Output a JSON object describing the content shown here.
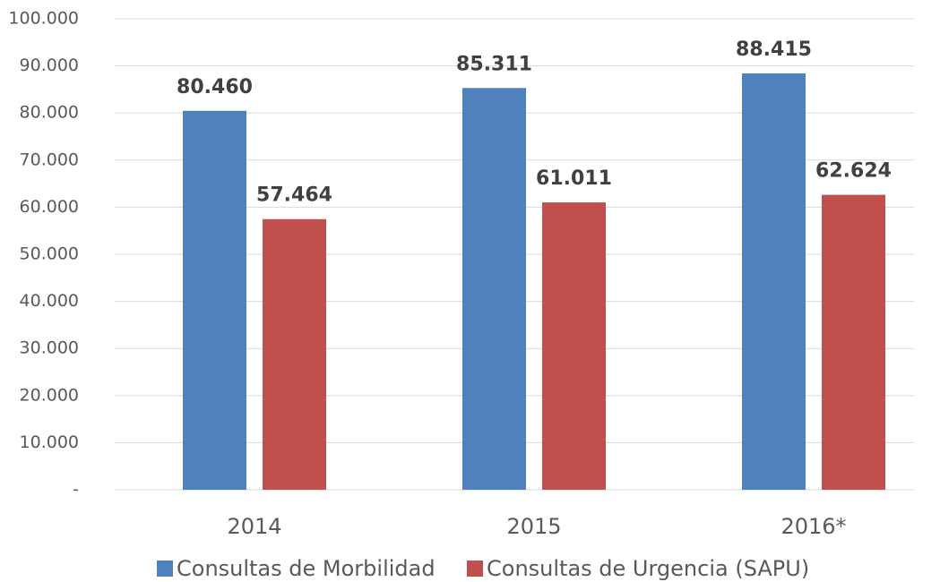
{
  "chart_data": {
    "type": "bar",
    "categories": [
      "2014",
      "2015",
      "2016*"
    ],
    "series": [
      {
        "name": "Consultas de Morbilidad",
        "color": "#4f81bd",
        "values": [
          80460,
          85311,
          88415
        ],
        "value_labels": [
          "80.460",
          "85.311",
          "88.415"
        ]
      },
      {
        "name": "Consultas de Urgencia (SAPU)",
        "color": "#c0504d",
        "values": [
          57464,
          61011,
          62624
        ],
        "value_labels": [
          "57.464",
          "61.011",
          "62.624"
        ]
      }
    ],
    "ylim": [
      0,
      100000
    ],
    "yticks": [
      {
        "value": 0,
        "label": "-"
      },
      {
        "value": 10000,
        "label": "10.000"
      },
      {
        "value": 20000,
        "label": "20.000"
      },
      {
        "value": 30000,
        "label": "30.000"
      },
      {
        "value": 40000,
        "label": "40.000"
      },
      {
        "value": 50000,
        "label": "50.000"
      },
      {
        "value": 60000,
        "label": "60.000"
      },
      {
        "value": 70000,
        "label": "70.000"
      },
      {
        "value": 80000,
        "label": "80.000"
      },
      {
        "value": 90000,
        "label": "90.000"
      },
      {
        "value": 100000,
        "label": "100.000"
      }
    ],
    "grid": true,
    "legend": "bottom"
  }
}
